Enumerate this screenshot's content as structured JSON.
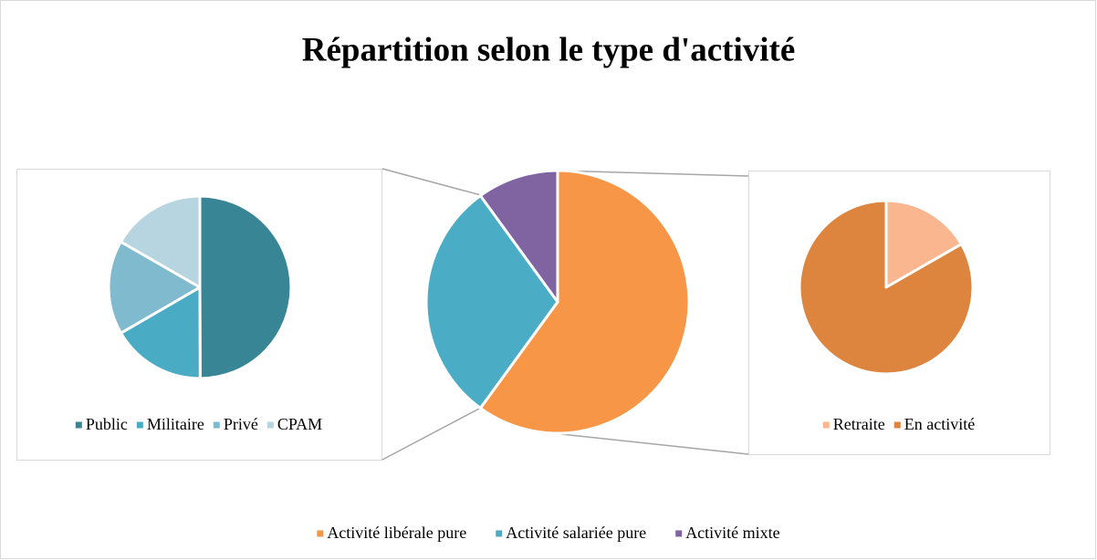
{
  "chart_data": [
    {
      "type": "pie",
      "title": "Répartition selon le type d'activité",
      "categories": [
        "Activité libérale pure",
        "Activité salariée pure",
        "Activité mixte"
      ],
      "values": [
        60,
        30,
        10
      ],
      "colors": [
        "#f79646",
        "#4bacc6",
        "#8064a2"
      ],
      "legend": "bottom"
    },
    {
      "type": "pie",
      "categories": [
        "Public",
        "Militaire",
        "Privé",
        "CPAM"
      ],
      "values": [
        50,
        16.7,
        16.7,
        16.7
      ],
      "colors": [
        "#388596",
        "#4aabc4",
        "#80bace",
        "#b7d5e0"
      ],
      "legend": "bottom"
    },
    {
      "type": "pie",
      "categories": [
        "Retraite",
        "En activité"
      ],
      "values": [
        16.7,
        83.3
      ],
      "colors": [
        "#f9b68f",
        "#dd843e"
      ],
      "legend": "bottom"
    }
  ]
}
